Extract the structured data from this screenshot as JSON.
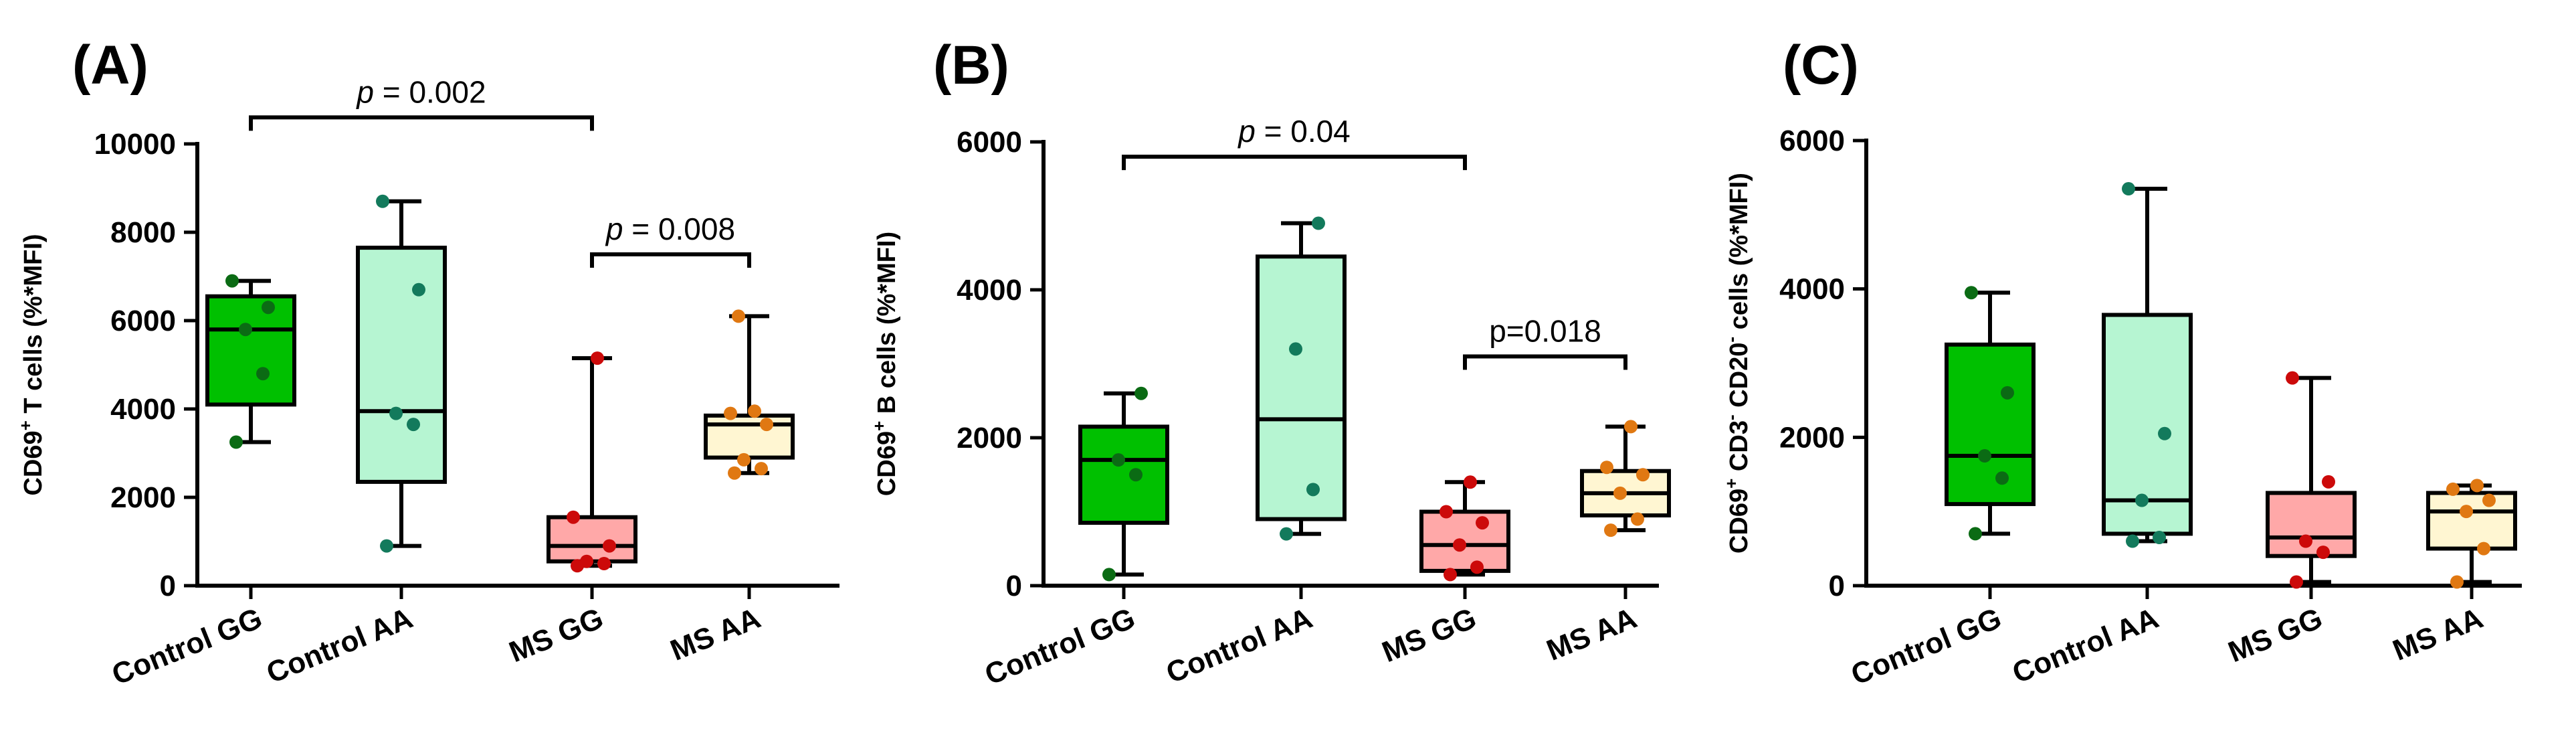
{
  "figure": {
    "categories": [
      "Control GG",
      "Control AA",
      "MS GG",
      "MS AA"
    ],
    "group_colors": {
      "Control GG": {
        "box": "#00c000",
        "dot": "#0b6b14"
      },
      "Control AA": {
        "box": "#b6f5d2",
        "dot": "#137a5c"
      },
      "MS GG": {
        "box": "#ffa8a8",
        "dot": "#cc0a0a"
      },
      "MS AA": {
        "box": "#fff6d2",
        "dot": "#e07812"
      }
    }
  },
  "chart_data": [
    {
      "panel": "(A)",
      "type": "boxplot",
      "ylabel_prefix": "CD69",
      "ylabel_sup": "+",
      "ylabel_rest": " T cells (%*MFI)",
      "ylim": [
        0,
        10000
      ],
      "yticks": [
        0,
        2000,
        4000,
        6000,
        8000,
        10000
      ],
      "tick_labels": [
        "0",
        "2000",
        "4000",
        "6000",
        "8000",
        "10000"
      ],
      "groups": [
        {
          "name": "Control GG",
          "min": 3250,
          "q1": 4100,
          "median": 5800,
          "q3": 6550,
          "max": 6900,
          "points": [
            3250,
            4800,
            5800,
            6300,
            6900
          ]
        },
        {
          "name": "Control AA",
          "min": 900,
          "q1": 2350,
          "median": 3950,
          "q3": 7650,
          "max": 8700,
          "points": [
            900,
            3650,
            3900,
            6700,
            8700
          ]
        },
        {
          "name": "MS GG",
          "min": 450,
          "q1": 550,
          "median": 900,
          "q3": 1550,
          "max": 5150,
          "points": [
            450,
            500,
            550,
            900,
            1550,
            5150
          ]
        },
        {
          "name": "MS AA",
          "min": 2550,
          "q1": 2900,
          "median": 3650,
          "q3": 3850,
          "max": 6100,
          "points": [
            2550,
            2650,
            2850,
            3650,
            3900,
            3950,
            6100
          ]
        }
      ],
      "comparisons": [
        {
          "from": 0,
          "to": 2,
          "y": 10600,
          "label": "p = 0.002",
          "p_prefix": "p",
          "p_rest": " = 0.002"
        },
        {
          "from": 2,
          "to": 3,
          "y": 7500,
          "label": "p = 0.008",
          "p_prefix": "p",
          "p_rest": " = 0.008"
        }
      ]
    },
    {
      "panel": "(B)",
      "type": "boxplot",
      "ylabel_prefix": "CD69",
      "ylabel_sup": "+",
      "ylabel_rest": " B cells (%*MFI)",
      "ylim": [
        0,
        6000
      ],
      "yticks": [
        0,
        2000,
        4000,
        6000
      ],
      "tick_labels": [
        "0",
        "2000",
        "4000",
        "6000"
      ],
      "groups": [
        {
          "name": "Control GG",
          "min": 150,
          "q1": 850,
          "median": 1700,
          "q3": 2150,
          "max": 2600,
          "points": [
            150,
            1500,
            1700,
            2600
          ]
        },
        {
          "name": "Control AA",
          "min": 700,
          "q1": 900,
          "median": 2250,
          "q3": 4450,
          "max": 4900,
          "points": [
            700,
            1300,
            3200,
            4900
          ]
        },
        {
          "name": "MS GG",
          "min": 150,
          "q1": 200,
          "median": 550,
          "q3": 1000,
          "max": 1400,
          "points": [
            150,
            250,
            550,
            850,
            1000,
            1400
          ]
        },
        {
          "name": "MS AA",
          "min": 750,
          "q1": 950,
          "median": 1250,
          "q3": 1550,
          "max": 2150,
          "points": [
            750,
            900,
            1250,
            1500,
            1600,
            2150
          ]
        }
      ],
      "comparisons": [
        {
          "from": 0,
          "to": 2,
          "y": 5800,
          "label": "p = 0.04",
          "p_prefix": "p",
          "p_rest": " = 0.04"
        },
        {
          "from": 2,
          "to": 3,
          "y": 3100,
          "label": "p=0.018",
          "p_prefix": "",
          "p_rest": "p=0.018"
        }
      ]
    },
    {
      "panel": "(C)",
      "type": "boxplot",
      "ylabel_prefix": "CD69",
      "ylabel_sup": "+",
      "ylabel_rest": " CD3",
      "ylabel_sup2": "-",
      "ylabel_rest2": " CD20",
      "ylabel_sup3": "-",
      "ylabel_rest3": " cells (%*MFI)",
      "ylim": [
        0,
        6000
      ],
      "yticks": [
        0,
        2000,
        4000,
        6000
      ],
      "tick_labels": [
        "0",
        "2000",
        "4000",
        "6000"
      ],
      "groups": [
        {
          "name": "Control GG",
          "min": 700,
          "q1": 1100,
          "median": 1750,
          "q3": 3250,
          "max": 3950,
          "points": [
            700,
            1450,
            1750,
            2600,
            3950
          ]
        },
        {
          "name": "Control AA",
          "min": 600,
          "q1": 700,
          "median": 1150,
          "q3": 3650,
          "max": 5350,
          "points": [
            600,
            650,
            1150,
            2050,
            5350
          ]
        },
        {
          "name": "MS GG",
          "min": 50,
          "q1": 400,
          "median": 650,
          "q3": 1250,
          "max": 2800,
          "points": [
            50,
            450,
            600,
            1400,
            2800
          ]
        },
        {
          "name": "MS AA",
          "min": 50,
          "q1": 500,
          "median": 1000,
          "q3": 1250,
          "max": 1350,
          "points": [
            50,
            500,
            1000,
            1150,
            1300,
            1350
          ]
        }
      ],
      "comparisons": []
    }
  ]
}
